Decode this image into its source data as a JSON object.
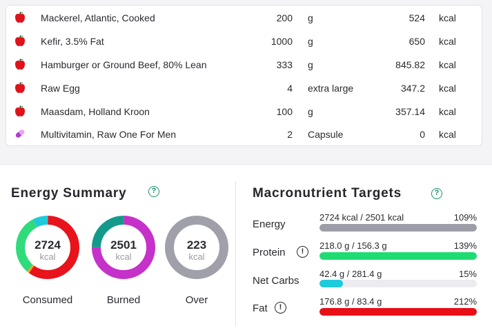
{
  "foods": [
    {
      "name": "Mackerel, Atlantic, Cooked",
      "amount": "200",
      "unit": "g",
      "kcal": "524",
      "kcal_unit": "kcal",
      "icon": "apple-icon"
    },
    {
      "name": "Kefir, 3.5% Fat",
      "amount": "1000",
      "unit": "g",
      "kcal": "650",
      "kcal_unit": "kcal",
      "icon": "apple-icon"
    },
    {
      "name": "Hamburger or Ground Beef, 80% Lean",
      "amount": "333",
      "unit": "g",
      "kcal": "845.82",
      "kcal_unit": "kcal",
      "icon": "apple-icon"
    },
    {
      "name": "Raw Egg",
      "amount": "4",
      "unit": "extra large",
      "kcal": "347.2",
      "kcal_unit": "kcal",
      "icon": "apple-icon"
    },
    {
      "name": "Maasdam, Holland Kroon",
      "amount": "100",
      "unit": "g",
      "kcal": "357.14",
      "kcal_unit": "kcal",
      "icon": "apple-icon"
    },
    {
      "name": "Multivitamin, Raw One For Men",
      "amount": "2",
      "unit": "Capsule",
      "kcal": "0",
      "kcal_unit": "kcal",
      "icon": "pill-icon"
    }
  ],
  "energy_summary": {
    "title": "Energy Summary",
    "help": "?",
    "rings": [
      {
        "value": "2724",
        "unit": "kcal",
        "label": "Consumed",
        "segments": [
          {
            "color": "#e8131b",
            "fraction": 0.6
          },
          {
            "color": "#f5a623",
            "fraction": 0.012
          },
          {
            "color": "#2fdb7a",
            "fraction": 0.31
          },
          {
            "color": "#1fc9d8",
            "fraction": 0.078
          }
        ]
      },
      {
        "value": "2501",
        "unit": "kcal",
        "label": "Burned",
        "segments": [
          {
            "color": "#c531c9",
            "fraction": 0.75
          },
          {
            "color": "#149a8a",
            "fraction": 0.25
          }
        ]
      },
      {
        "value": "223",
        "unit": "kcal",
        "label": "Over",
        "segments": [
          {
            "color": "#a0a0ab",
            "fraction": 1.0
          }
        ]
      }
    ]
  },
  "macro_targets": {
    "title": "Macronutrient Targets",
    "help": "?",
    "warn": "!",
    "rows": [
      {
        "label": "Energy",
        "values": "2724 kcal / 2501 kcal",
        "percent": "109%",
        "fill": 1.0,
        "color": "#9d9da8",
        "warning": false
      },
      {
        "label": "Protein",
        "values": "218.0 g / 156.3 g",
        "percent": "139%",
        "fill": 1.0,
        "color": "#1fdc72",
        "warning": true
      },
      {
        "label": "Net Carbs",
        "values": "42.4 g / 281.4 g",
        "percent": "15%",
        "fill": 0.15,
        "color": "#1ccbdc",
        "warning": false
      },
      {
        "label": "Fat",
        "values": "176.8 g / 83.4 g",
        "percent": "212%",
        "fill": 1.0,
        "color": "#e80f17",
        "warning": true
      }
    ]
  }
}
